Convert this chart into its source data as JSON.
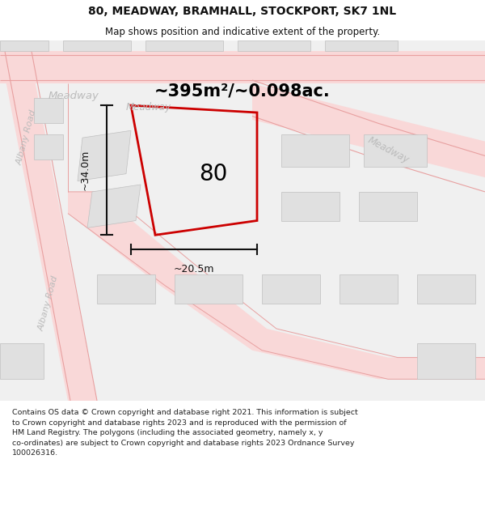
{
  "title_line1": "80, MEADWAY, BRAMHALL, STOCKPORT, SK7 1NL",
  "title_line2": "Map shows position and indicative extent of the property.",
  "area_label": "~395m²/~0.098ac.",
  "property_number": "80",
  "dim_width": "~20.5m",
  "dim_height": "~34.0m",
  "footer_text": "Contains OS data © Crown copyright and database right 2021. This information is subject to Crown copyright and database rights 2023 and is reproduced with the permission of HM Land Registry. The polygons (including the associated geometry, namely x, y co-ordinates) are subject to Crown copyright and database rights 2023 Ordnance Survey 100026316.",
  "road_fill": "#f9d8d8",
  "road_edge": "#e8a0a0",
  "building_fill": "#e0e0e0",
  "building_edge": "#c0c0c0",
  "property_edge": "#cc0000",
  "road_label_color": "#bbbbbb",
  "dim_color": "#111111",
  "text_black": "#111111",
  "white": "#ffffff",
  "map_bg": "#f0f0f0"
}
